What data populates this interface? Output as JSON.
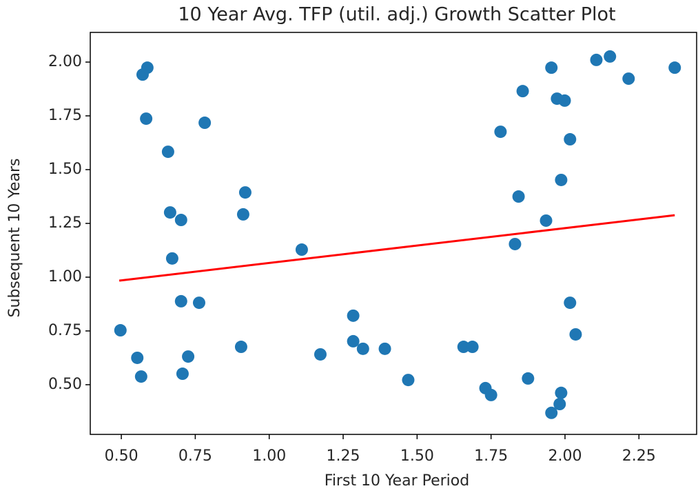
{
  "chart_data": {
    "type": "scatter",
    "title": "10 Year Avg. TFP (util. adj.) Growth Scatter Plot",
    "x_label": "First 10 Year Period",
    "y_label": "Subsequent 10 Years",
    "xlim": [
      0.395,
      2.445
    ],
    "ylim": [
      0.269,
      2.138
    ],
    "xticks": [
      {
        "value": 0.5,
        "label": "0.50"
      },
      {
        "value": 0.75,
        "label": "0.75"
      },
      {
        "value": 1.0,
        "label": "1.00"
      },
      {
        "value": 1.25,
        "label": "1.25"
      },
      {
        "value": 1.5,
        "label": "1.50"
      },
      {
        "value": 1.75,
        "label": "1.75"
      },
      {
        "value": 2.0,
        "label": "2.00"
      },
      {
        "value": 2.25,
        "label": "2.25"
      }
    ],
    "yticks": [
      {
        "value": 0.5,
        "label": "0.50"
      },
      {
        "value": 0.75,
        "label": "0.75"
      },
      {
        "value": 1.0,
        "label": "1.00"
      },
      {
        "value": 1.25,
        "label": "1.25"
      },
      {
        "value": 1.5,
        "label": "1.50"
      },
      {
        "value": 1.75,
        "label": "1.75"
      },
      {
        "value": 2.0,
        "label": "2.00"
      }
    ],
    "grid": false,
    "series": [
      {
        "type": "scatter",
        "color": "#1f77b4",
        "x": [
          0.497,
          0.554,
          0.567,
          0.572,
          0.588,
          0.584,
          0.658,
          0.665,
          0.702,
          0.672,
          0.702,
          0.763,
          0.726,
          0.707,
          0.782,
          0.919,
          0.912,
          0.905,
          1.11,
          1.173,
          1.284,
          1.284,
          1.317,
          1.391,
          1.47,
          1.657,
          1.687,
          1.731,
          1.75,
          1.782,
          1.857,
          1.843,
          1.831,
          1.875,
          1.936,
          1.954,
          1.973,
          1.999,
          1.987,
          2.017,
          2.017,
          2.036,
          1.987,
          1.982,
          1.954,
          2.106,
          2.152,
          2.215,
          2.371
        ],
        "values": [
          0.753,
          0.625,
          0.538,
          1.942,
          1.974,
          1.737,
          1.583,
          1.301,
          1.266,
          1.087,
          0.888,
          0.881,
          0.631,
          0.551,
          1.718,
          1.394,
          1.292,
          0.676,
          1.128,
          0.641,
          0.821,
          0.702,
          0.667,
          0.667,
          0.522,
          0.676,
          0.676,
          0.484,
          0.452,
          1.676,
          1.865,
          1.375,
          1.154,
          0.529,
          1.263,
          1.974,
          1.83,
          1.821,
          1.452,
          1.641,
          0.881,
          0.734,
          0.462,
          0.41,
          0.369,
          2.01,
          2.026,
          1.923,
          1.974
        ]
      },
      {
        "type": "line",
        "color": "#ff0000",
        "x": [
          0.493,
          2.371
        ],
        "values": [
          0.984,
          1.288
        ]
      }
    ]
  }
}
